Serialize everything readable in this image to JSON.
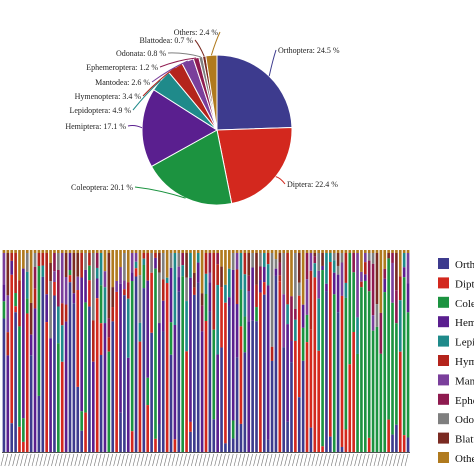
{
  "colors": {
    "Orthoptera": "#3d3b8e",
    "Diptera": "#d3281e",
    "Coleoptera": "#1c9340",
    "Hemiptera": "#5a1f8f",
    "Lepidoptera": "#1f8a8a",
    "Hymenoptera": "#b4241c",
    "Mantodea": "#7a3f9b",
    "Ephemeroptera": "#8e1a4f",
    "Odonata": "#7f7f7f",
    "Blattodea": "#7a2a22",
    "Others": "#b07a1e"
  },
  "chart_data": [
    {
      "type": "pie",
      "slices": [
        {
          "name": "Orthoptera",
          "value": 24.5,
          "label": "Orthoptera: 24.5 %"
        },
        {
          "name": "Diptera",
          "value": 22.4,
          "label": "Diptera: 22.4 %"
        },
        {
          "name": "Coleoptera",
          "value": 20.1,
          "label": "Coleoptera: 20.1 %"
        },
        {
          "name": "Hemiptera",
          "value": 17.1,
          "label": "Hemiptera: 17.1 %"
        },
        {
          "name": "Lepidoptera",
          "value": 4.9,
          "label": "Lepidoptera: 4.9 %"
        },
        {
          "name": "Hymenoptera",
          "value": 3.4,
          "label": "Hymenoptera: 3.4 %"
        },
        {
          "name": "Mantodea",
          "value": 2.6,
          "label": "Mantodea: 2.6 %"
        },
        {
          "name": "Ephemeroptera",
          "value": 1.2,
          "label": "Ephemeroptera: 1.2 %"
        },
        {
          "name": "Odonata",
          "value": 0.8,
          "label": "Odonata: 0.8 %"
        },
        {
          "name": "Blattodea",
          "value": 0.7,
          "label": "Blattodea: 0.7 %"
        },
        {
          "name": "Others",
          "value": 2.4,
          "label": "Others: 2.4 %"
        }
      ]
    },
    {
      "type": "bar",
      "stacked": true,
      "normalized_percent": true,
      "legend": [
        "Orthoptera",
        "Diptera",
        "Coleoptera",
        "Hemiptera",
        "Lepidoptera",
        "Hymenoptera",
        "Mantodea",
        "Ephemeroptera",
        "Odonata",
        "Blattodea",
        "Others"
      ],
      "legend_placement": "right",
      "dominant_order": [
        "Orthoptera",
        "Hemiptera",
        "Diptera",
        "Orthoptera",
        "Coleoptera",
        "Hemiptera",
        "Diptera",
        "Orthoptera",
        "Hemiptera",
        "Coleoptera",
        "Orthoptera",
        "Diptera",
        "Hemiptera",
        "Orthoptera",
        "Coleoptera",
        "Diptera",
        "Hemiptera",
        "Orthoptera",
        "Orthoptera",
        "Diptera",
        "Hemiptera",
        "Coleoptera",
        "Orthoptera",
        "Hemiptera",
        "Diptera",
        "Orthoptera",
        "Hemiptera",
        "Coleoptera",
        "Orthoptera",
        "Diptera",
        "Hemiptera",
        "Orthoptera",
        "Hemiptera",
        "Coleoptera",
        "Orthoptera",
        "Diptera",
        "Orthoptera",
        "Hemiptera",
        "Orthoptera",
        "Coleoptera",
        "Hemiptera",
        "Orthoptera",
        "Diptera",
        "Orthoptera",
        "Hemiptera",
        "Orthoptera",
        "Coleoptera",
        "Diptera",
        "Hemiptera",
        "Orthoptera",
        "Orthoptera",
        "Hemiptera",
        "Diptera",
        "Orthoptera",
        "Coleoptera",
        "Hemiptera",
        "Orthoptera",
        "Diptera",
        "Orthoptera",
        "Hemiptera",
        "Orthoptera",
        "Diptera",
        "Orthoptera",
        "Hemiptera",
        "Orthoptera",
        "Orthoptera",
        "Diptera",
        "Orthoptera",
        "Hemiptera",
        "Orthoptera",
        "Orthoptera",
        "Diptera",
        "Orthoptera",
        "Hemiptera",
        "Orthoptera",
        "Diptera",
        "Diptera",
        "Orthoptera",
        "Diptera",
        "Diptera",
        "Diptera",
        "Diptera",
        "Coleoptera",
        "Orthoptera",
        "Diptera",
        "Coleoptera",
        "Orthoptera",
        "Diptera",
        "Coleoptera",
        "Coleoptera",
        "Diptera",
        "Coleoptera",
        "Coleoptera",
        "Coleoptera",
        "Coleoptera",
        "Coleoptera",
        "Coleoptera",
        "Coleoptera",
        "Coleoptera",
        "Coleoptera",
        "Coleoptera",
        "Coleoptera",
        "Diptera",
        "Coleoptera",
        "Coleoptera"
      ]
    }
  ]
}
